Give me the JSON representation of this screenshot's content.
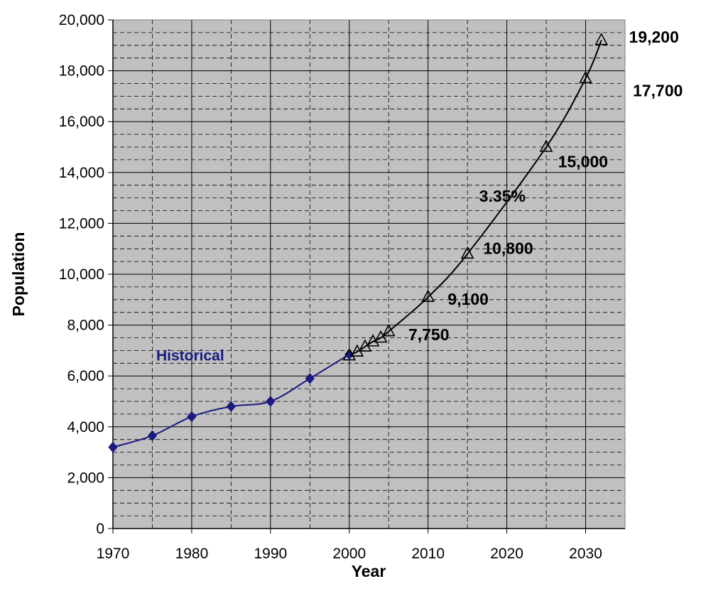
{
  "chart_data": {
    "type": "line",
    "xlabel": "Year",
    "ylabel": "Population",
    "xlim": [
      1970,
      2035
    ],
    "ylim": [
      0,
      20000
    ],
    "x_ticks": [
      1970,
      1980,
      1990,
      2000,
      2010,
      2020,
      2030
    ],
    "y_ticks": [
      0,
      2000,
      4000,
      6000,
      8000,
      10000,
      12000,
      14000,
      16000,
      18000,
      20000
    ],
    "y_tick_labels": [
      "0",
      "2,000",
      "4,000",
      "6,000",
      "8,000",
      "10,000",
      "12,000",
      "14,000",
      "16,000",
      "18,000",
      "20,000"
    ],
    "x_tick_labels": [
      "1970",
      "1980",
      "1990",
      "2000",
      "2010",
      "2020",
      "2030"
    ],
    "grid": true,
    "plot_background": "#c0c0c0",
    "series": [
      {
        "name": "Historical",
        "color": "#1a1a80",
        "marker": "diamond",
        "x": [
          1970,
          1975,
          1980,
          1985,
          1990,
          1995,
          2000
        ],
        "y": [
          3200,
          3650,
          4400,
          4800,
          5000,
          5900,
          6850
        ]
      },
      {
        "name": "",
        "color": "#000000",
        "marker": "triangle",
        "x": [
          2000,
          2001,
          2002,
          2003,
          2004,
          2005,
          2010,
          2015,
          2025,
          2030,
          2032
        ],
        "y": [
          6800,
          6950,
          7150,
          7350,
          7500,
          7750,
          9100,
          10800,
          15000,
          17700,
          19200
        ]
      }
    ],
    "annotations": [
      {
        "text": "Historical",
        "x": 1975.5,
        "y": 6600,
        "kind": "series"
      },
      {
        "text": "7,750",
        "x": 2007.5,
        "y": 7400,
        "kind": "data"
      },
      {
        "text": "9,100",
        "x": 2012.5,
        "y": 8800,
        "kind": "data"
      },
      {
        "text": "10,800",
        "x": 2017,
        "y": 10800,
        "kind": "data"
      },
      {
        "text": "3.35%",
        "x": 2016.5,
        "y": 12850,
        "kind": "data"
      },
      {
        "text": "15,000",
        "x": 2026.5,
        "y": 14200,
        "kind": "data"
      },
      {
        "text": "17,700",
        "x": 2036,
        "y": 17000,
        "kind": "data"
      },
      {
        "text": "19,200",
        "x": 2035.5,
        "y": 19100,
        "kind": "data"
      }
    ]
  }
}
